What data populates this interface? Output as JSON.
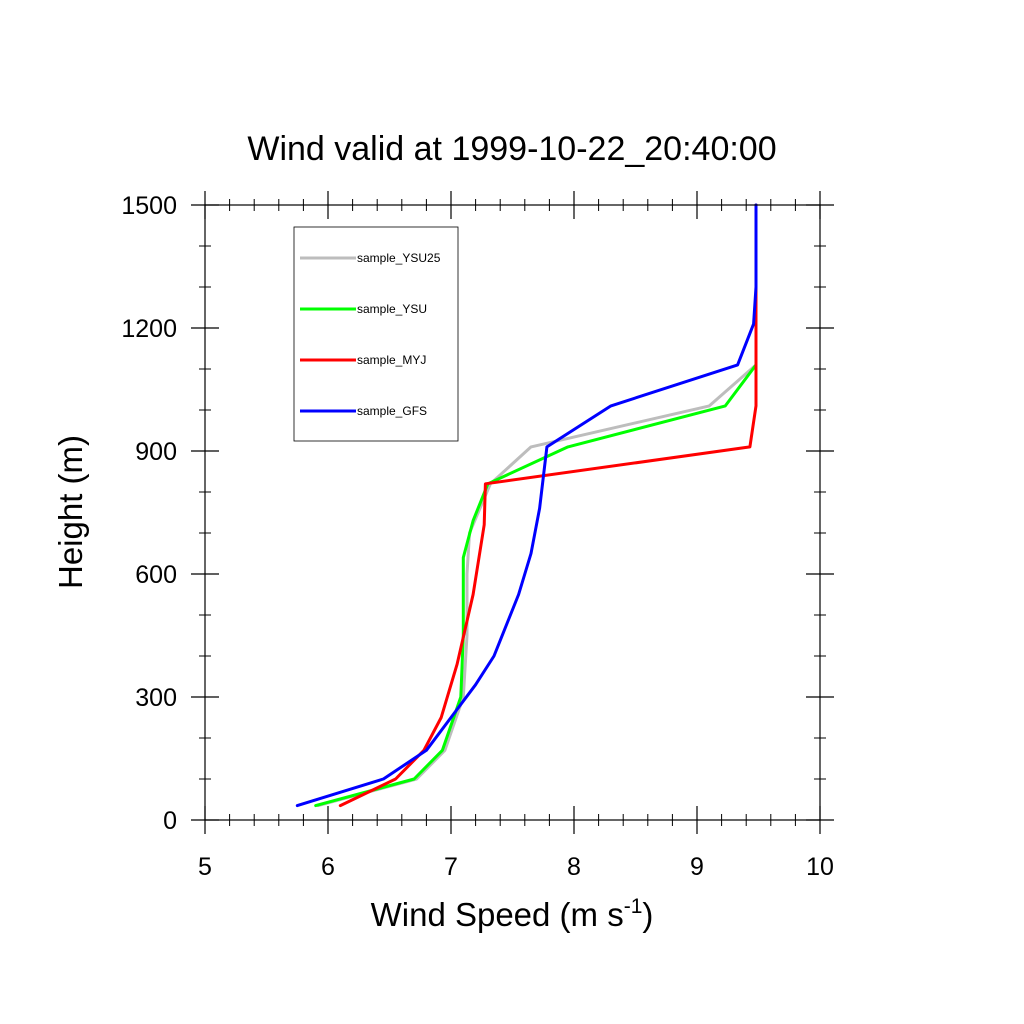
{
  "chart_data": {
    "type": "line",
    "title": "Wind valid at 1999-10-22_20:40:00",
    "xlabel": "Wind Speed (m s",
    "xlabel_superscript": "-1",
    "xlabel_suffix": ")",
    "ylabel": "Height (m)",
    "xlim": [
      5,
      10
    ],
    "ylim": [
      0,
      1500
    ],
    "xticks": [
      5,
      6,
      7,
      8,
      9,
      10
    ],
    "yticks": [
      0,
      300,
      600,
      900,
      1200,
      1500
    ],
    "grid": false,
    "legend_position": "top-left",
    "series": [
      {
        "name": "sample_YSU25",
        "color": "#bdbdbd",
        "x": [
          5.92,
          6.72,
          6.95,
          7.1,
          7.13,
          7.13,
          7.15,
          7.32,
          7.65,
          9.1,
          9.48,
          9.48,
          9.48
        ],
        "y": [
          35,
          100,
          170,
          300,
          450,
          600,
          700,
          820,
          910,
          1010,
          1110,
          1200,
          1500
        ]
      },
      {
        "name": "sample_YSU",
        "color": "#00ff00",
        "x": [
          5.9,
          6.7,
          6.93,
          7.08,
          7.1,
          7.1,
          7.18,
          7.3,
          7.95,
          9.23,
          9.48,
          9.48,
          9.48
        ],
        "y": [
          35,
          100,
          170,
          300,
          450,
          640,
          730,
          820,
          910,
          1010,
          1110,
          1200,
          1500
        ]
      },
      {
        "name": "sample_MYJ",
        "color": "#ff0000",
        "x": [
          6.1,
          6.55,
          6.78,
          6.92,
          7.05,
          7.18,
          7.27,
          7.28,
          9.43,
          9.48,
          9.48,
          9.48,
          9.48
        ],
        "y": [
          35,
          100,
          170,
          250,
          380,
          550,
          720,
          820,
          910,
          1010,
          1110,
          1200,
          1500
        ]
      },
      {
        "name": "sample_GFS",
        "color": "#0000ff",
        "x": [
          5.75,
          6.45,
          6.8,
          7.0,
          7.2,
          7.35,
          7.55,
          7.65,
          7.72,
          7.78,
          8.3,
          9.33,
          9.46,
          9.48,
          9.48
        ],
        "y": [
          35,
          100,
          170,
          250,
          330,
          400,
          550,
          650,
          760,
          910,
          1010,
          1110,
          1210,
          1300,
          1500
        ]
      }
    ]
  }
}
